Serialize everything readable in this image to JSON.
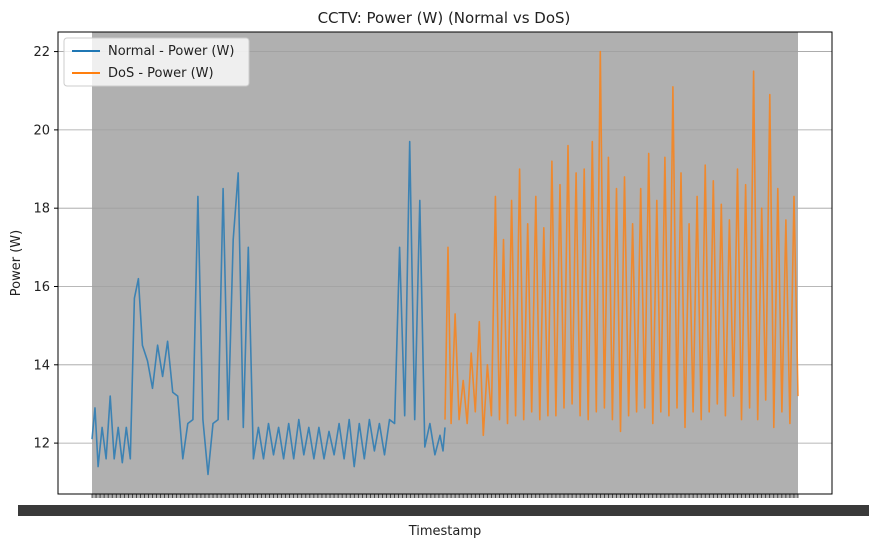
{
  "chart_data": {
    "type": "line",
    "title": "CCTV: Power (W) (Normal vs DoS)",
    "xlabel": "Timestamp",
    "ylabel": "Power (W)",
    "ylim": [
      10.7,
      22.5
    ],
    "yticks": [
      12,
      14,
      16,
      18,
      20,
      22
    ],
    "grid": "y",
    "legend_position": "top-left",
    "x_tick_labels_overlapping": true,
    "series": [
      {
        "name": "Normal - Power (W)",
        "color": "#1f77b4",
        "x": [
          0,
          3,
          6,
          10,
          14,
          18,
          22,
          26,
          30,
          34,
          38,
          42,
          46,
          50,
          55,
          60,
          65,
          70,
          75,
          80,
          85,
          90,
          95,
          100,
          105,
          110,
          115,
          120,
          125,
          130,
          135,
          140,
          145,
          150,
          155,
          160,
          165,
          170,
          175,
          180,
          185,
          190,
          195,
          200,
          205,
          210,
          215,
          220,
          225,
          230,
          235,
          240,
          245,
          250,
          255,
          260,
          265,
          270,
          275,
          280,
          285,
          290,
          295,
          300,
          305,
          310,
          315,
          320,
          325,
          330,
          335,
          340,
          345,
          348,
          350
        ],
        "values": [
          12.1,
          12.9,
          11.4,
          12.4,
          11.6,
          13.2,
          11.6,
          12.4,
          11.5,
          12.4,
          11.6,
          15.7,
          16.2,
          14.5,
          14.1,
          13.4,
          14.5,
          13.7,
          14.6,
          13.3,
          13.2,
          11.6,
          12.5,
          12.6,
          18.3,
          12.6,
          11.2,
          12.5,
          12.6,
          18.5,
          12.6,
          17.2,
          18.9,
          12.4,
          17.0,
          11.6,
          12.4,
          11.6,
          12.5,
          11.7,
          12.4,
          11.6,
          12.5,
          11.6,
          12.6,
          11.7,
          12.4,
          11.6,
          12.4,
          11.6,
          12.3,
          11.7,
          12.5,
          11.6,
          12.6,
          11.4,
          12.5,
          11.6,
          12.6,
          11.8,
          12.5,
          11.7,
          12.6,
          12.5,
          17.0,
          12.7,
          19.7,
          12.6,
          18.2,
          11.9,
          12.5,
          11.7,
          12.2,
          11.8,
          12.4
        ]
      },
      {
        "name": "DoS - Power (W)",
        "color": "#ff7f0e",
        "x": [
          350,
          353,
          356,
          360,
          364,
          368,
          372,
          376,
          380,
          384,
          388,
          392,
          396,
          400,
          404,
          408,
          412,
          416,
          420,
          424,
          428,
          432,
          436,
          440,
          444,
          448,
          452,
          456,
          460,
          464,
          468,
          472,
          476,
          480,
          484,
          488,
          492,
          496,
          500,
          504,
          508,
          512,
          516,
          520,
          524,
          528,
          532,
          536,
          540,
          544,
          548,
          552,
          556,
          560,
          564,
          568,
          572,
          576,
          580,
          584,
          588,
          592,
          596,
          600,
          604,
          608,
          612,
          616,
          620,
          624,
          628,
          632,
          636,
          640,
          644,
          648,
          652,
          656,
          660,
          664,
          668,
          672,
          676,
          680,
          684,
          688,
          692,
          696,
          700
        ],
        "values": [
          12.6,
          17.0,
          12.5,
          15.3,
          12.6,
          13.6,
          12.5,
          14.3,
          12.8,
          15.1,
          12.2,
          14.0,
          12.7,
          18.3,
          12.6,
          17.2,
          12.5,
          18.2,
          12.7,
          19.0,
          12.6,
          17.6,
          12.8,
          18.3,
          12.6,
          17.5,
          12.7,
          19.2,
          12.7,
          18.6,
          12.9,
          19.6,
          13.0,
          18.9,
          12.7,
          19.0,
          12.6,
          19.7,
          12.8,
          22.0,
          12.9,
          19.3,
          12.6,
          18.5,
          12.3,
          18.8,
          12.7,
          17.6,
          12.8,
          18.5,
          12.9,
          19.4,
          12.5,
          18.2,
          12.8,
          19.3,
          12.7,
          21.1,
          12.9,
          18.9,
          12.4,
          17.6,
          12.8,
          18.3,
          12.6,
          19.1,
          12.8,
          18.7,
          13.0,
          18.1,
          12.7,
          17.7,
          13.2,
          19.0,
          12.6,
          18.6,
          12.9,
          21.5,
          12.6,
          18.0,
          13.1,
          20.9,
          12.4,
          18.5,
          12.8,
          17.7,
          12.5,
          18.3,
          13.2
        ]
      }
    ]
  }
}
